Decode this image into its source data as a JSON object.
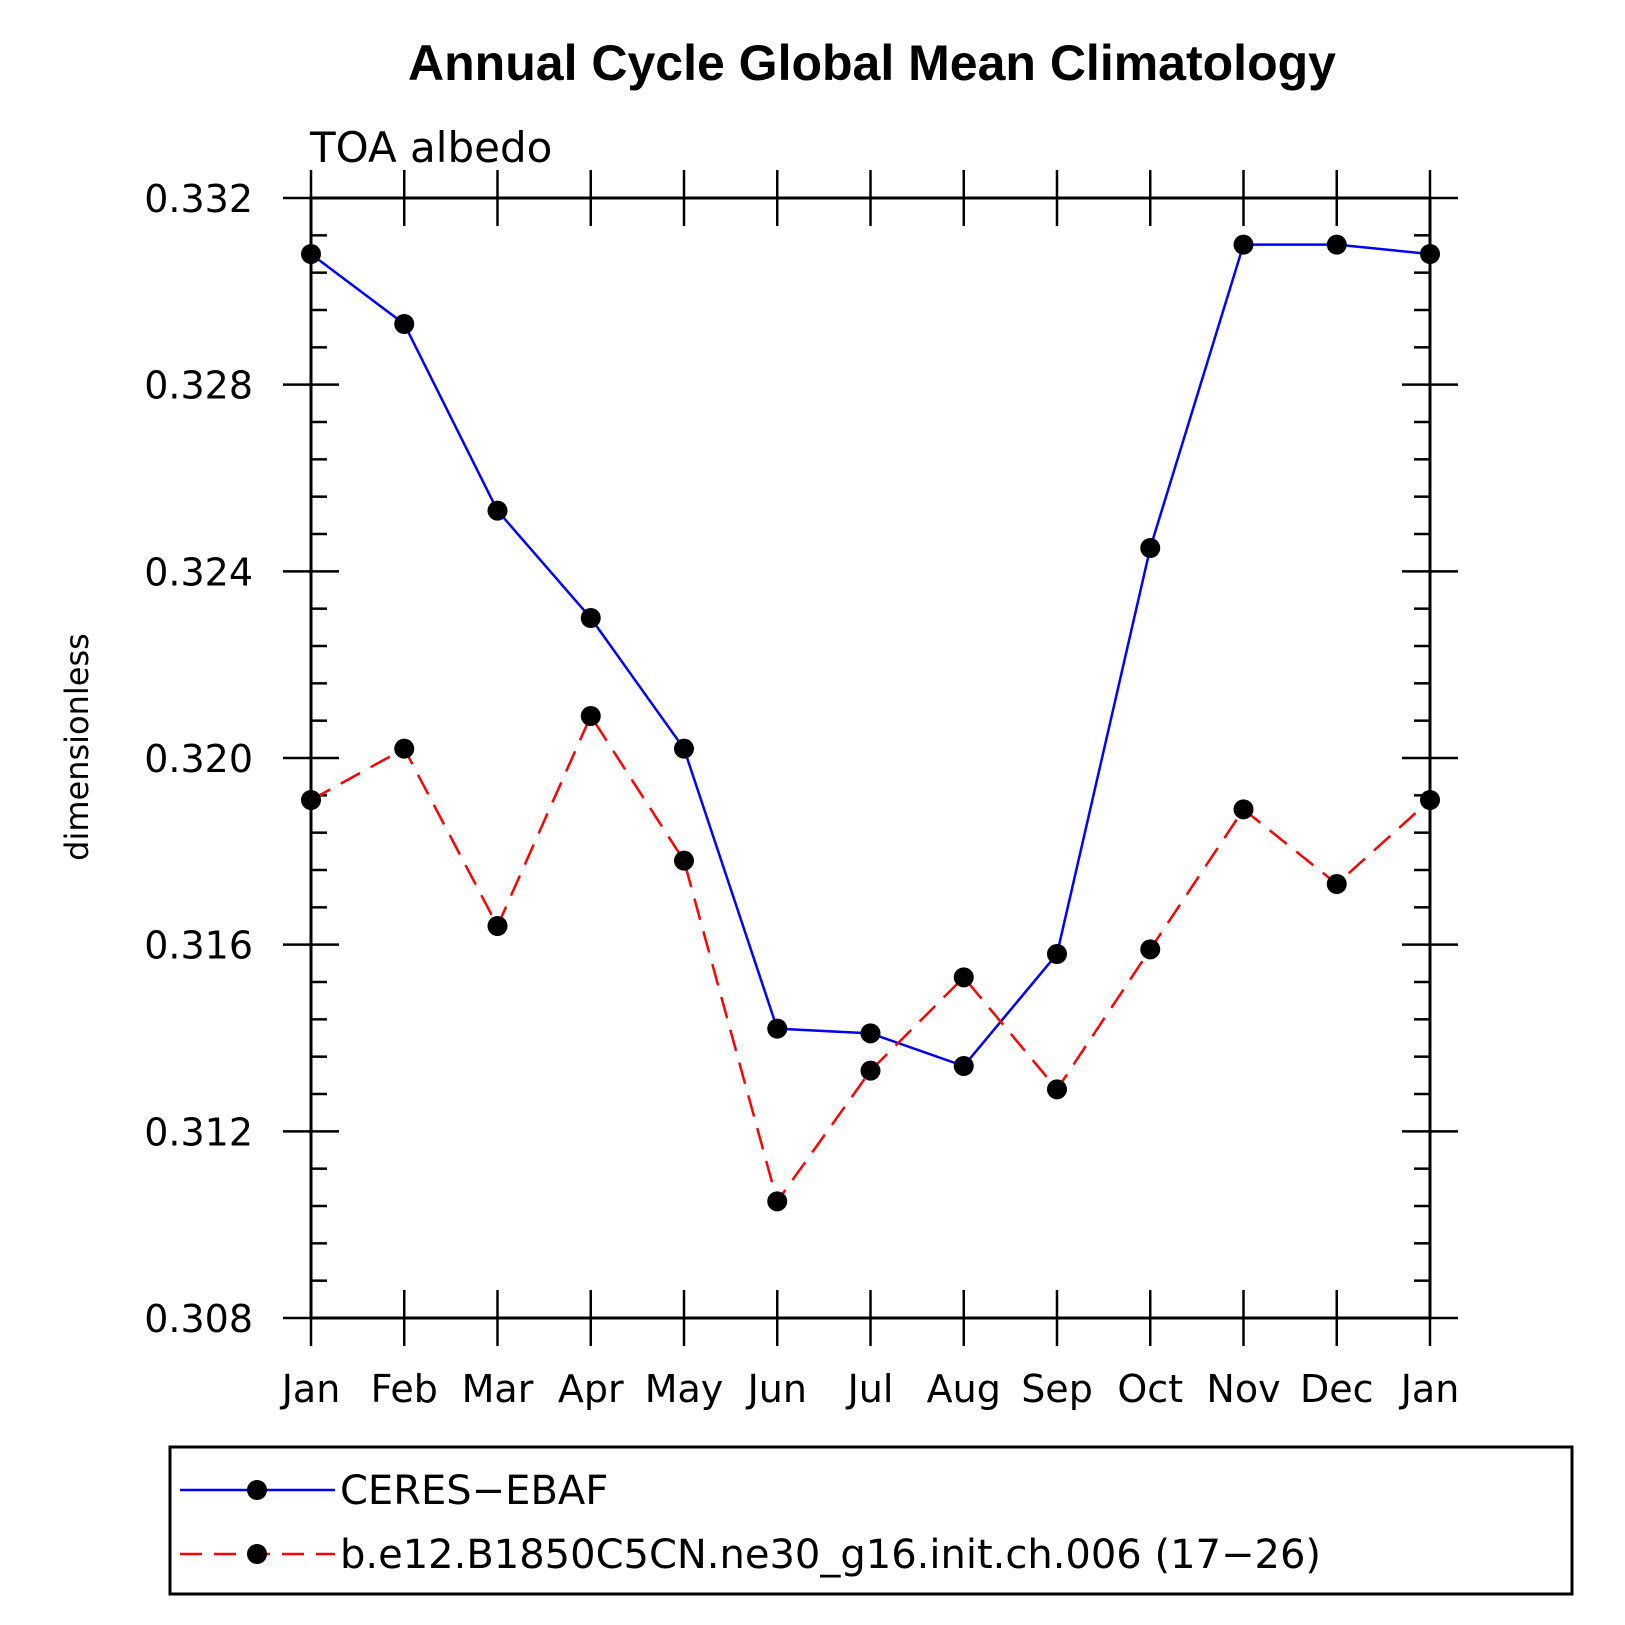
{
  "chart_data": {
    "type": "line",
    "title": "Annual Cycle Global Mean Climatology",
    "subtitle": "TOA  albedo",
    "xlabel": "",
    "ylabel": "dimensionless",
    "categories": [
      "Jan",
      "Feb",
      "Mar",
      "Apr",
      "May",
      "Jun",
      "Jul",
      "Aug",
      "Sep",
      "Oct",
      "Nov",
      "Dec",
      "Jan"
    ],
    "ylim": [
      0.308,
      0.332
    ],
    "yticks": [
      "0.308",
      "0.312",
      "0.316",
      "0.320",
      "0.324",
      "0.328",
      "0.332"
    ],
    "grid": false,
    "legend_position": "bottom",
    "series": [
      {
        "name": "CERES−EBAF",
        "color": "#0000ff",
        "dash": "solid",
        "marker": "filled-circle",
        "values": [
          0.3308,
          0.3293,
          0.3253,
          0.323,
          0.3202,
          0.3142,
          0.3141,
          0.3134,
          0.3158,
          0.3245,
          0.331,
          0.331,
          0.3308
        ]
      },
      {
        "name": "b.e12.B1850C5CN.ne30_g16.init.ch.006 (17−26)",
        "color": "#ff0000",
        "dash": "dashed",
        "marker": "filled-circle",
        "values": [
          0.3191,
          0.3202,
          0.3164,
          0.3209,
          0.3178,
          0.3105,
          0.3133,
          0.3153,
          0.3129,
          0.3159,
          0.3189,
          0.3173,
          0.3191
        ]
      }
    ]
  }
}
